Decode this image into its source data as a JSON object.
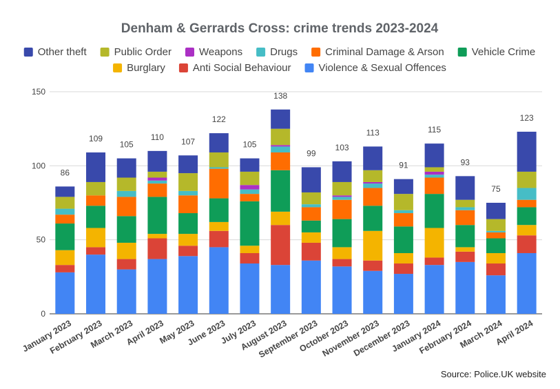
{
  "chart_data": {
    "type": "bar",
    "stacked": true,
    "title": "Denham & Gerrards Cross: crime trends 2023-2024",
    "source": "Source: Police.UK website",
    "categories": [
      "January 2023",
      "February 2023",
      "March 2023",
      "April 2023",
      "May 2023",
      "June 2023",
      "July 2023",
      "August 2023",
      "September 2023",
      "October 2023",
      "November 2023",
      "December 2023",
      "January 2024",
      "February 2024",
      "March 2024",
      "April 2024"
    ],
    "totals": [
      86,
      109,
      105,
      110,
      107,
      122,
      105,
      138,
      99,
      103,
      113,
      91,
      115,
      93,
      75,
      123
    ],
    "ylim": [
      0,
      150
    ],
    "yticks": [
      0,
      50,
      100,
      150
    ],
    "grid": true,
    "legend_position": "top",
    "legend_order": [
      "Other theft",
      "Public Order",
      "Weapons",
      "Drugs",
      "Criminal Damage & Arson",
      "Vehicle Crime",
      "Burglary",
      "Anti Social Behaviour",
      "Violence & Sexual Offences"
    ],
    "series": [
      {
        "name": "Violence & Sexual Offences",
        "color": "#4285f4",
        "values": [
          28,
          40,
          30,
          37,
          39,
          45,
          34,
          33,
          36,
          32,
          29,
          27,
          33,
          35,
          26,
          41
        ]
      },
      {
        "name": "Anti Social Behaviour",
        "color": "#db4437",
        "values": [
          5,
          5,
          7,
          14,
          7,
          11,
          7,
          27,
          12,
          5,
          7,
          7,
          5,
          7,
          8,
          12
        ]
      },
      {
        "name": "Burglary",
        "color": "#f4b400",
        "values": [
          10,
          13,
          11,
          3,
          8,
          6,
          5,
          9,
          7,
          8,
          20,
          7,
          20,
          3,
          7,
          7
        ]
      },
      {
        "name": "Vehicle Crime",
        "color": "#0f9d58",
        "values": [
          18,
          15,
          18,
          25,
          14,
          16,
          30,
          28,
          8,
          19,
          17,
          18,
          23,
          15,
          10,
          12
        ]
      },
      {
        "name": "Criminal Damage & Arson",
        "color": "#ff6d01",
        "values": [
          6,
          7,
          13,
          9,
          12,
          20,
          5,
          12,
          9,
          13,
          12,
          9,
          11,
          10,
          4,
          5
        ]
      },
      {
        "name": "Drugs",
        "color": "#46bdc6",
        "values": [
          4,
          0,
          4,
          2,
          3,
          1,
          3,
          4,
          2,
          2,
          3,
          2,
          2,
          2,
          1,
          8
        ]
      },
      {
        "name": "Weapons",
        "color": "#ab30c4",
        "values": [
          0,
          0,
          0,
          2,
          0,
          0,
          3,
          1,
          0,
          1,
          1,
          0,
          2,
          0,
          0,
          0
        ]
      },
      {
        "name": "Public Order",
        "color": "#b5b82a",
        "values": [
          8,
          9,
          9,
          4,
          12,
          10,
          9,
          11,
          8,
          9,
          8,
          11,
          3,
          5,
          8,
          11
        ]
      },
      {
        "name": "Other theft",
        "color": "#3949ab",
        "values": [
          7,
          20,
          13,
          14,
          12,
          13,
          9,
          13,
          17,
          14,
          16,
          10,
          16,
          16,
          11,
          27
        ]
      }
    ]
  }
}
